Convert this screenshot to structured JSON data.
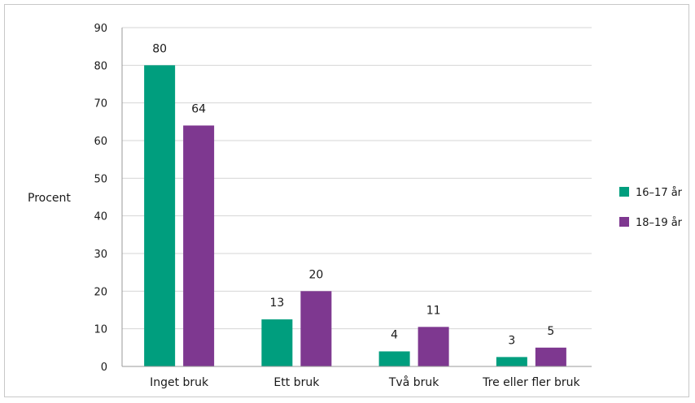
{
  "chart_data": {
    "type": "bar",
    "categories": [
      "Inget bruk",
      "Ett bruk",
      "Två bruk",
      "Tre eller fler bruk"
    ],
    "series": [
      {
        "name": "16–17 år",
        "color": "#009E7E",
        "values": [
          80,
          12.5,
          4,
          2.5
        ],
        "labels": [
          "80",
          "13",
          "4",
          "3"
        ]
      },
      {
        "name": "18–19 år",
        "color": "#7E3890",
        "values": [
          64,
          20,
          10.5,
          5
        ],
        "labels": [
          "64",
          "20",
          "11",
          "5"
        ]
      }
    ],
    "ylabel": "Procent",
    "ylim": [
      0,
      90
    ],
    "yticks": [
      0,
      10,
      20,
      30,
      40,
      50,
      60,
      70,
      80,
      90
    ],
    "grid": true,
    "legend_position": "right"
  }
}
